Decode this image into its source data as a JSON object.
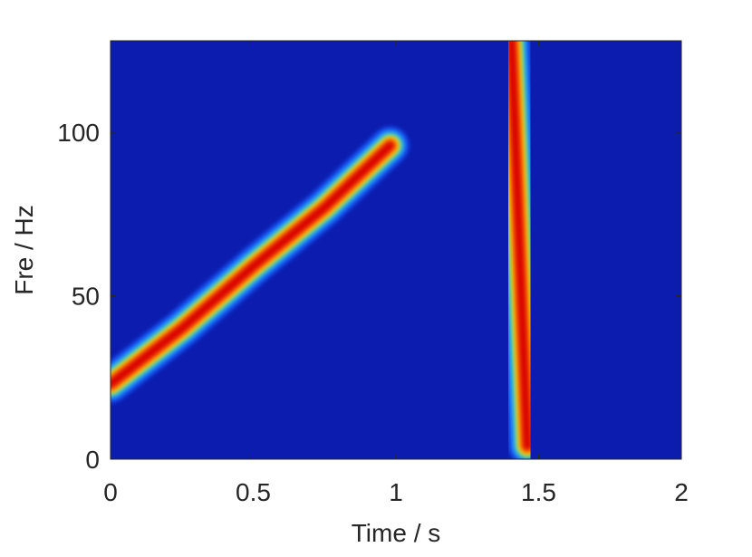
{
  "chart_data": {
    "type": "spectrogram",
    "xlabel": "Time / s",
    "ylabel": "Fre / Hz",
    "xlim": [
      0,
      2
    ],
    "ylim": [
      0,
      128
    ],
    "xticks": [
      0,
      0.5,
      1,
      1.5,
      2
    ],
    "yticks": [
      0,
      50,
      100
    ],
    "background": "#0c1cae",
    "series": [
      {
        "color": "#d80000",
        "x": [
          0,
          0.25,
          0.5,
          0.75,
          0.98
        ],
        "values": [
          23,
          40,
          59,
          77,
          96
        ]
      },
      {
        "color": "#d80000",
        "x": [
          1.405,
          1.46
        ],
        "values": [
          128,
          4
        ]
      }
    ]
  }
}
